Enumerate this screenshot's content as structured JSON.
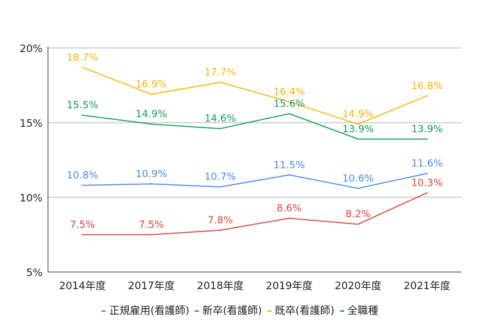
{
  "chart_data": {
    "type": "line",
    "categories": [
      "2014年度",
      "2017年度",
      "2018年度",
      "2019年度",
      "2020年度",
      "2021年度"
    ],
    "ylim": [
      5,
      20
    ],
    "yticks": [
      5,
      10,
      15,
      20
    ],
    "ytick_labels": [
      "5%",
      "10%",
      "15%",
      "20%"
    ],
    "grid": true,
    "legend": "bottom",
    "series": [
      {
        "name": "正規雇用(看護師)",
        "color": "#4a86e8",
        "values": [
          10.8,
          10.9,
          10.7,
          11.5,
          10.6,
          11.6
        ],
        "labels": [
          "10.8%",
          "10.9%",
          "10.7%",
          "11.5%",
          "10.6%",
          "11.6%"
        ]
      },
      {
        "name": "新卒(看護師)",
        "color": "#db4437",
        "values": [
          7.5,
          7.5,
          7.8,
          8.6,
          8.2,
          10.3
        ],
        "labels": [
          "7.5%",
          "7.5%",
          "7.8%",
          "8.6%",
          "8.2%",
          "10.3%"
        ]
      },
      {
        "name": "既卒(看護師)",
        "color": "#f4b400",
        "values": [
          18.7,
          16.9,
          17.7,
          16.4,
          14.9,
          16.8
        ],
        "labels": [
          "18.7%",
          "16.9%",
          "17.7%",
          "16.4%",
          "14.9%",
          "16.8%"
        ]
      },
      {
        "name": "全職種",
        "color": "#0f9d58",
        "values": [
          15.5,
          14.9,
          14.6,
          15.6,
          13.9,
          13.9
        ],
        "labels": [
          "15.5%",
          "14.9%",
          "14.6%",
          "15.6%",
          "13.9%",
          "13.9%"
        ]
      }
    ]
  }
}
